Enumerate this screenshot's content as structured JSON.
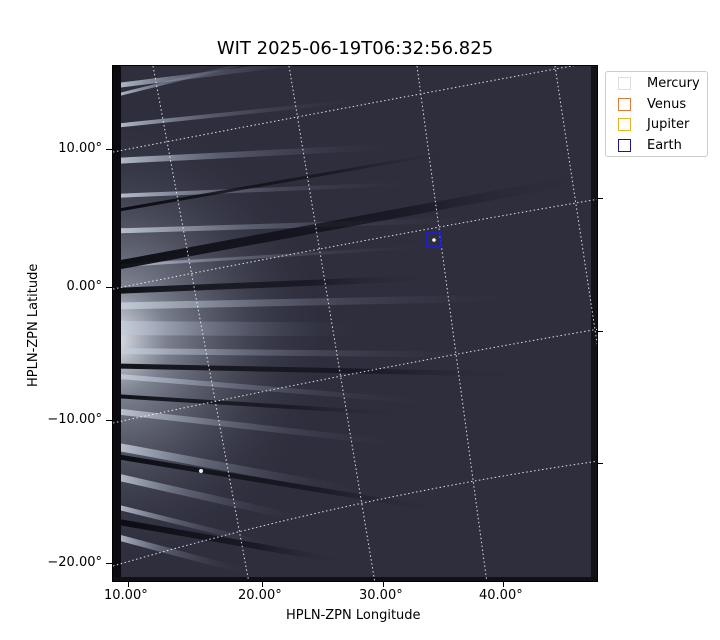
{
  "title": "WIT 2025-06-19T06:32:56.825",
  "axes": {
    "xlabel": "HPLN-ZPN Longitude",
    "ylabel": "HPLN-ZPN Latitude",
    "x_ticks": [
      "10.00°",
      "20.00°",
      "30.00°",
      "40.00°"
    ],
    "y_ticks": [
      "10.00°",
      "0.00°",
      "−10.00°",
      "−20.00°"
    ]
  },
  "legend": {
    "items": [
      {
        "label": "Mercury",
        "color": "#dddddd"
      },
      {
        "label": "Venus",
        "color": "#e07b39"
      },
      {
        "label": "Jupiter",
        "color": "#e6b422"
      },
      {
        "label": "Earth",
        "color": "#1a1a8c"
      }
    ]
  },
  "marker": {
    "label": "Earth",
    "color": "#1a1aee"
  },
  "colors": {
    "background": "#2d2d3c",
    "grid": "#ffffff"
  }
}
